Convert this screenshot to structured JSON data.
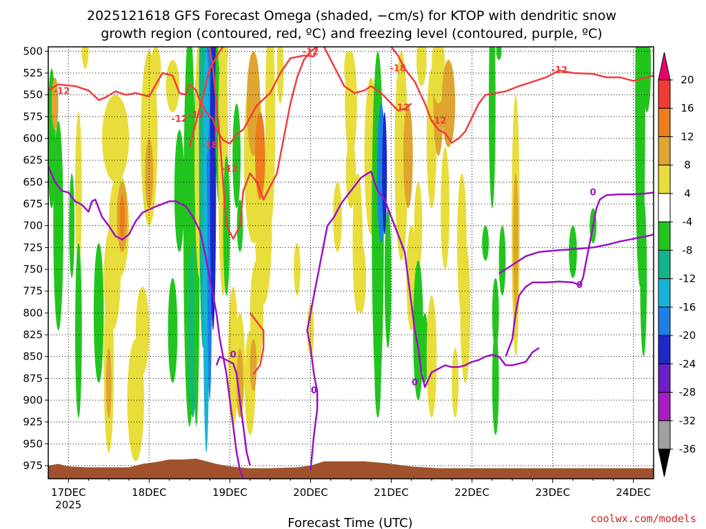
{
  "title": {
    "line1": "2025121618 GFS Forecast Omega (shaded, −cm/s) for KTOP with dendritic snow",
    "line2": "growth region (contoured, red, ºC) and freezing level (contoured, purple, ºC)"
  },
  "credit": "coolwx.com/models",
  "chart_data": {
    "type": "time-height cross-section",
    "xlabel": "Forecast Time (UTC)",
    "x_ticks": [
      {
        "label": "17DEC",
        "sublabel": "2025",
        "t": 0
      },
      {
        "label": "18DEC",
        "t": 24
      },
      {
        "label": "19DEC",
        "t": 48
      },
      {
        "label": "20DEC",
        "t": 72
      },
      {
        "label": "21DEC",
        "t": 96
      },
      {
        "label": "22DEC",
        "t": 120
      },
      {
        "label": "23DEC",
        "t": 144
      },
      {
        "label": "24DEC",
        "t": 168
      }
    ],
    "x_range_hours": [
      -6,
      174
    ],
    "y_ticks_hpa": [
      500,
      525,
      550,
      575,
      600,
      625,
      650,
      675,
      700,
      725,
      750,
      775,
      800,
      825,
      850,
      875,
      900,
      925,
      950,
      975
    ],
    "y_range_hpa": [
      495,
      990
    ],
    "grid": true,
    "colorbar": {
      "labels": [
        "20",
        "16",
        "12",
        "8",
        "4",
        "-4",
        "-8",
        "-12",
        "-16",
        "-20",
        "-24",
        "-28",
        "-32",
        "-36"
      ],
      "colors": [
        "#e8006e",
        "#f03a34",
        "#ee7d1c",
        "#e0a530",
        "#e8dd3a",
        "#ffffff",
        "#22c51e",
        "#10b58a",
        "#16b3d8",
        "#1c7ee8",
        "#1c28c8",
        "#6c1ec8",
        "#a81cc4",
        "#a0a0a0",
        "#000000"
      ]
    },
    "series": [
      {
        "type": "contour",
        "color": "#f03c3c",
        "labels": [
          "-12",
          "-12",
          "-12",
          "-18",
          "-12",
          "-12",
          "-18",
          "-12",
          "-12",
          "-12"
        ],
        "paths": [
          [
            [
              -6,
              545
            ],
            [
              -3,
              538
            ],
            [
              2,
              540
            ],
            [
              6,
              545
            ],
            [
              9,
              556
            ],
            [
              11,
              553
            ],
            [
              14,
              546
            ],
            [
              17,
              550
            ],
            [
              20,
              548
            ],
            [
              24,
              552
            ],
            [
              26,
              538
            ],
            [
              28,
              525
            ],
            [
              31,
              528
            ],
            [
              33,
              548
            ],
            [
              35,
              550
            ],
            [
              36,
              538
            ],
            [
              38,
              545
            ],
            [
              39,
              556
            ],
            [
              41,
              570
            ],
            [
              43,
              578
            ],
            [
              44,
              590
            ],
            [
              46,
              602
            ],
            [
              48,
              606
            ],
            [
              50,
              595
            ],
            [
              52,
              590
            ],
            [
              56,
              562
            ],
            [
              60,
              548
            ],
            [
              63,
              525
            ],
            [
              66,
              508
            ],
            [
              70,
              505
            ],
            [
              73,
              506
            ],
            [
              74,
              495
            ]
          ],
          [
            [
              36,
              610
            ],
            [
              38,
              580
            ],
            [
              40,
              552
            ],
            [
              42,
              520
            ],
            [
              45,
              500
            ],
            [
              46,
              495
            ]
          ],
          [
            [
              42,
              495
            ],
            [
              43,
              520
            ],
            [
              44,
              560
            ],
            [
              45,
              600
            ],
            [
              46,
              650
            ],
            [
              47,
              700
            ],
            [
              49,
              715
            ],
            [
              51,
              700
            ],
            [
              52,
              660
            ],
            [
              54,
              640
            ],
            [
              56,
              650
            ],
            [
              58,
              670
            ],
            [
              60,
              655
            ],
            [
              62,
              640
            ],
            [
              64,
              600
            ],
            [
              66,
              560
            ],
            [
              68,
              530
            ],
            [
              70,
              510
            ],
            [
              72,
              500
            ],
            [
              74,
              495
            ]
          ],
          [
            [
              54,
              800
            ],
            [
              56,
              810
            ],
            [
              58,
              820
            ],
            [
              58,
              840
            ],
            [
              57,
              860
            ],
            [
              55,
              870
            ]
          ],
          [
            [
              76,
              495
            ],
            [
              78,
              510
            ],
            [
              80,
              525
            ],
            [
              82,
              540
            ],
            [
              85,
              548
            ],
            [
              88,
              545
            ],
            [
              90,
              540
            ],
            [
              93,
              548
            ],
            [
              96,
              560
            ],
            [
              98,
              568
            ],
            [
              100,
              566
            ],
            [
              102,
              560
            ]
          ],
          [
            [
              96,
              495
            ],
            [
              98,
              505
            ],
            [
              100,
              520
            ],
            [
              103,
              535
            ],
            [
              106,
              560
            ],
            [
              108,
              580
            ],
            [
              110,
              590
            ],
            [
              112,
              594
            ],
            [
              114,
              605
            ],
            [
              116,
              600
            ],
            [
              118,
              592
            ],
            [
              120,
              576
            ],
            [
              122,
              560
            ],
            [
              124,
              550
            ],
            [
              130,
              546
            ],
            [
              134,
              540
            ],
            [
              138,
              535
            ],
            [
              142,
              530
            ],
            [
              146,
              522
            ],
            [
              150,
              525
            ],
            [
              156,
              526
            ],
            [
              160,
              530
            ],
            [
              164,
              530
            ],
            [
              168,
              534
            ],
            [
              172,
              530
            ],
            [
              174,
              528
            ]
          ]
        ],
        "label_points": [
          [
            -2,
            546
          ],
          [
            38,
            573
          ],
          [
            33,
            578
          ],
          [
            42,
            608
          ],
          [
            48,
            635
          ],
          [
            72,
            501
          ],
          [
            98,
            520
          ],
          [
            99,
            565
          ],
          [
            110,
            580
          ],
          [
            146,
            522
          ]
        ]
      },
      {
        "type": "contour",
        "color": "#9a10c6",
        "labels": [
          "0",
          "0",
          "0",
          "0",
          "0"
        ],
        "paths": [
          [
            [
              -6,
              632
            ],
            [
              -4,
              650
            ],
            [
              -2,
              660
            ],
            [
              0,
              662
            ],
            [
              2,
              672
            ],
            [
              4,
              676
            ],
            [
              6,
              684
            ],
            [
              7,
              672
            ],
            [
              8,
              670
            ],
            [
              10,
              690
            ],
            [
              12,
              700
            ],
            [
              14,
              712
            ],
            [
              16,
              716
            ],
            [
              18,
              710
            ],
            [
              20,
              695
            ],
            [
              22,
              685
            ],
            [
              26,
              678
            ],
            [
              30,
              672
            ],
            [
              32,
              672
            ],
            [
              35,
              678
            ],
            [
              37,
              690
            ],
            [
              39,
              705
            ],
            [
              40,
              720
            ],
            [
              41,
              740
            ],
            [
              42,
              760
            ],
            [
              43,
              780
            ],
            [
              44,
              800
            ],
            [
              45,
              830
            ],
            [
              46,
              850
            ],
            [
              47,
              870
            ],
            [
              48,
              900
            ],
            [
              49,
              930
            ],
            [
              50,
              960
            ],
            [
              51,
              980
            ],
            [
              52,
              990
            ]
          ],
          [
            [
              44,
              860
            ],
            [
              45,
              850
            ],
            [
              47,
              854
            ],
            [
              49,
              858
            ],
            [
              50,
              870
            ],
            [
              51,
              900
            ],
            [
              52,
              930
            ],
            [
              53,
              960
            ],
            [
              54,
              975
            ]
          ],
          [
            [
              72,
              980
            ],
            [
              73,
              940
            ],
            [
              74,
              910
            ],
            [
              74,
              890
            ],
            [
              73,
              870
            ],
            [
              72,
              840
            ],
            [
              71,
              820
            ],
            [
              72,
              800
            ],
            [
              73,
              780
            ],
            [
              74,
              760
            ],
            [
              75,
              740
            ],
            [
              76,
              720
            ],
            [
              77,
              700
            ],
            [
              79,
              690
            ],
            [
              81,
              675
            ],
            [
              83,
              665
            ],
            [
              85,
              655
            ],
            [
              87,
              645
            ],
            [
              89,
              640
            ],
            [
              90,
              638
            ],
            [
              91,
              650
            ],
            [
              92,
              660
            ],
            [
              94,
              670
            ],
            [
              96,
              690
            ],
            [
              98,
              710
            ],
            [
              100,
              730
            ],
            [
              101,
              760
            ],
            [
              102,
              790
            ],
            [
              103,
              820
            ],
            [
              104,
              840
            ],
            [
              105,
              870
            ],
            [
              106,
              885
            ],
            [
              108,
              868
            ],
            [
              112,
              860
            ],
            [
              114,
              862
            ],
            [
              116,
              862
            ],
            [
              118,
              860
            ],
            [
              120,
              856
            ],
            [
              122,
              854
            ],
            [
              124,
              850
            ],
            [
              126,
              848
            ],
            [
              128,
              850
            ],
            [
              130,
              860
            ],
            [
              132,
              860
            ],
            [
              134,
              858
            ],
            [
              136,
              856
            ],
            [
              138,
              845
            ],
            [
              140,
              840
            ]
          ],
          [
            [
              130,
              850
            ],
            [
              131,
              840
            ],
            [
              132,
              830
            ],
            [
              133,
              800
            ],
            [
              134,
              780
            ],
            [
              136,
              770
            ],
            [
              138,
              765
            ],
            [
              142,
              765
            ],
            [
              146,
              764
            ],
            [
              150,
              765
            ],
            [
              152,
              768
            ],
            [
              153,
              760
            ],
            [
              154,
              740
            ],
            [
              155,
              720
            ],
            [
              156,
              700
            ],
            [
              157,
              680
            ],
            [
              158,
              670
            ],
            [
              160,
              665
            ],
            [
              164,
              664
            ],
            [
              168,
              664
            ],
            [
              172,
              663
            ],
            [
              174,
              662
            ]
          ],
          [
            [
              128,
              755
            ],
            [
              130,
              750
            ],
            [
              134,
              740
            ],
            [
              136,
              735
            ],
            [
              140,
              730
            ],
            [
              146,
              728
            ],
            [
              150,
              727
            ],
            [
              156,
              725
            ],
            [
              160,
              722
            ],
            [
              164,
              718
            ],
            [
              168,
              715
            ],
            [
              172,
              712
            ],
            [
              174,
              710
            ]
          ]
        ],
        "label_points": [
          [
            49,
            848
          ],
          [
            73,
            889
          ],
          [
            103,
            880
          ],
          [
            152,
            768
          ],
          [
            156,
            662
          ]
        ]
      }
    ],
    "terrain_color": "#a0522d"
  }
}
